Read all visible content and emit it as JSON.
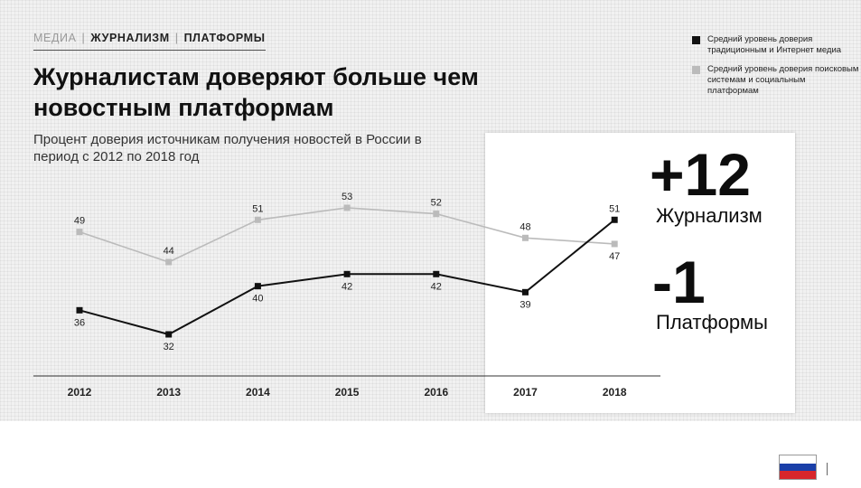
{
  "breadcrumb": {
    "items": [
      "МЕДИА",
      "ЖУРНАЛИЗМ",
      "ПЛАТФОРМЫ"
    ]
  },
  "legend": {
    "items": [
      {
        "label": "Средний уровень доверия традиционным и Интернет медиа",
        "color": "#111111"
      },
      {
        "label": "Средний уровень доверия поисковым системам и социальным платформам",
        "color": "#bbbbbb"
      }
    ]
  },
  "stats": {
    "journalism_value": "+12",
    "journalism_label": "Журнализм",
    "platforms_value": "-1",
    "platforms_label": "Платформы"
  },
  "flag": {
    "colors": [
      "#ffffff",
      "#1a3fa8",
      "#d8262b"
    ]
  },
  "chart_data": {
    "type": "line",
    "title": "Журналистам доверяют больше чем новостным платформам",
    "subtitle": "Процент доверия источникам  получения  новостей в России  в период  с 2012 по 2018 год",
    "x": [
      "2012",
      "2013",
      "2014",
      "2015",
      "2016",
      "2017",
      "2018"
    ],
    "series": [
      {
        "name": "Средний уровень доверия поисковым системам и социальным платформам",
        "color": "#bbbbbb",
        "values": [
          49,
          44,
          51,
          53,
          52,
          48,
          47
        ]
      },
      {
        "name": "Средний уровень доверия традиционным и Интернет медиа",
        "color": "#111111",
        "values": [
          36,
          32,
          40,
          42,
          42,
          39,
          51
        ]
      }
    ],
    "xlabel": "",
    "ylabel": "",
    "grid": false,
    "legend_position": "top-right"
  }
}
